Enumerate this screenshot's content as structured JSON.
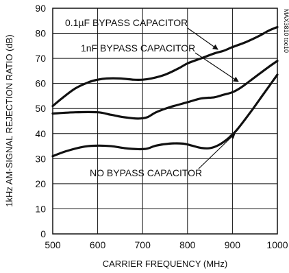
{
  "chart_data": {
    "type": "line",
    "xlabel": "CARRIER FREQUENCY (MHz)",
    "ylabel": "1kHz AM-SIGNAL REJECTION RATIO (dB)",
    "xlim": [
      500,
      1000
    ],
    "ylim": [
      0,
      90
    ],
    "xticks": [
      500,
      600,
      700,
      800,
      900,
      1000
    ],
    "yticks": [
      0,
      10,
      20,
      30,
      40,
      50,
      60,
      70,
      80,
      90
    ],
    "grid": true,
    "figure_code": "MAX3810 toc10",
    "series": [
      {
        "name": "0.1µF BYPASS CAPACITOR",
        "x": [
          500,
          520,
          550,
          580,
          600,
          620,
          650,
          680,
          700,
          720,
          750,
          780,
          800,
          830,
          860,
          880,
          900,
          930,
          960,
          980,
          1000
        ],
        "y": [
          51,
          54,
          58,
          60.5,
          61.5,
          62,
          62,
          61.5,
          61.5,
          62,
          63.5,
          66,
          68,
          70,
          72,
          73,
          74.5,
          76.5,
          79,
          81,
          82.5
        ]
      },
      {
        "name": "1nF BYPASS CAPACITOR",
        "x": [
          500,
          550,
          600,
          630,
          660,
          690,
          710,
          730,
          760,
          800,
          830,
          860,
          880,
          900,
          920,
          950,
          980,
          1000
        ],
        "y": [
          48,
          48.5,
          48.5,
          47.5,
          46.5,
          46,
          46.5,
          48.5,
          50.5,
          52.5,
          54,
          54.5,
          55.5,
          56.5,
          58.5,
          62.5,
          66.5,
          69
        ]
      },
      {
        "name": "NO BYPASS CAPACITOR",
        "x": [
          500,
          530,
          570,
          600,
          630,
          660,
          690,
          710,
          730,
          760,
          790,
          810,
          830,
          850,
          870,
          890,
          910,
          940,
          970,
          1000
        ],
        "y": [
          31,
          33,
          34.8,
          35.2,
          35,
          34.2,
          33.8,
          34,
          35.2,
          36,
          36,
          35.2,
          34.3,
          34.2,
          35.5,
          38,
          41.5,
          48.5,
          56,
          63.5
        ]
      }
    ],
    "annotations": [
      {
        "text": "0.1µF BYPASS CAPACITOR",
        "points_to": "0.1µF BYPASS CAPACITOR"
      },
      {
        "text": "1nF BYPASS CAPACITOR",
        "points_to": "1nF BYPASS CAPACITOR"
      },
      {
        "text": "NO BYPASS CAPACITOR",
        "points_to": "NO BYPASS CAPACITOR"
      }
    ]
  }
}
